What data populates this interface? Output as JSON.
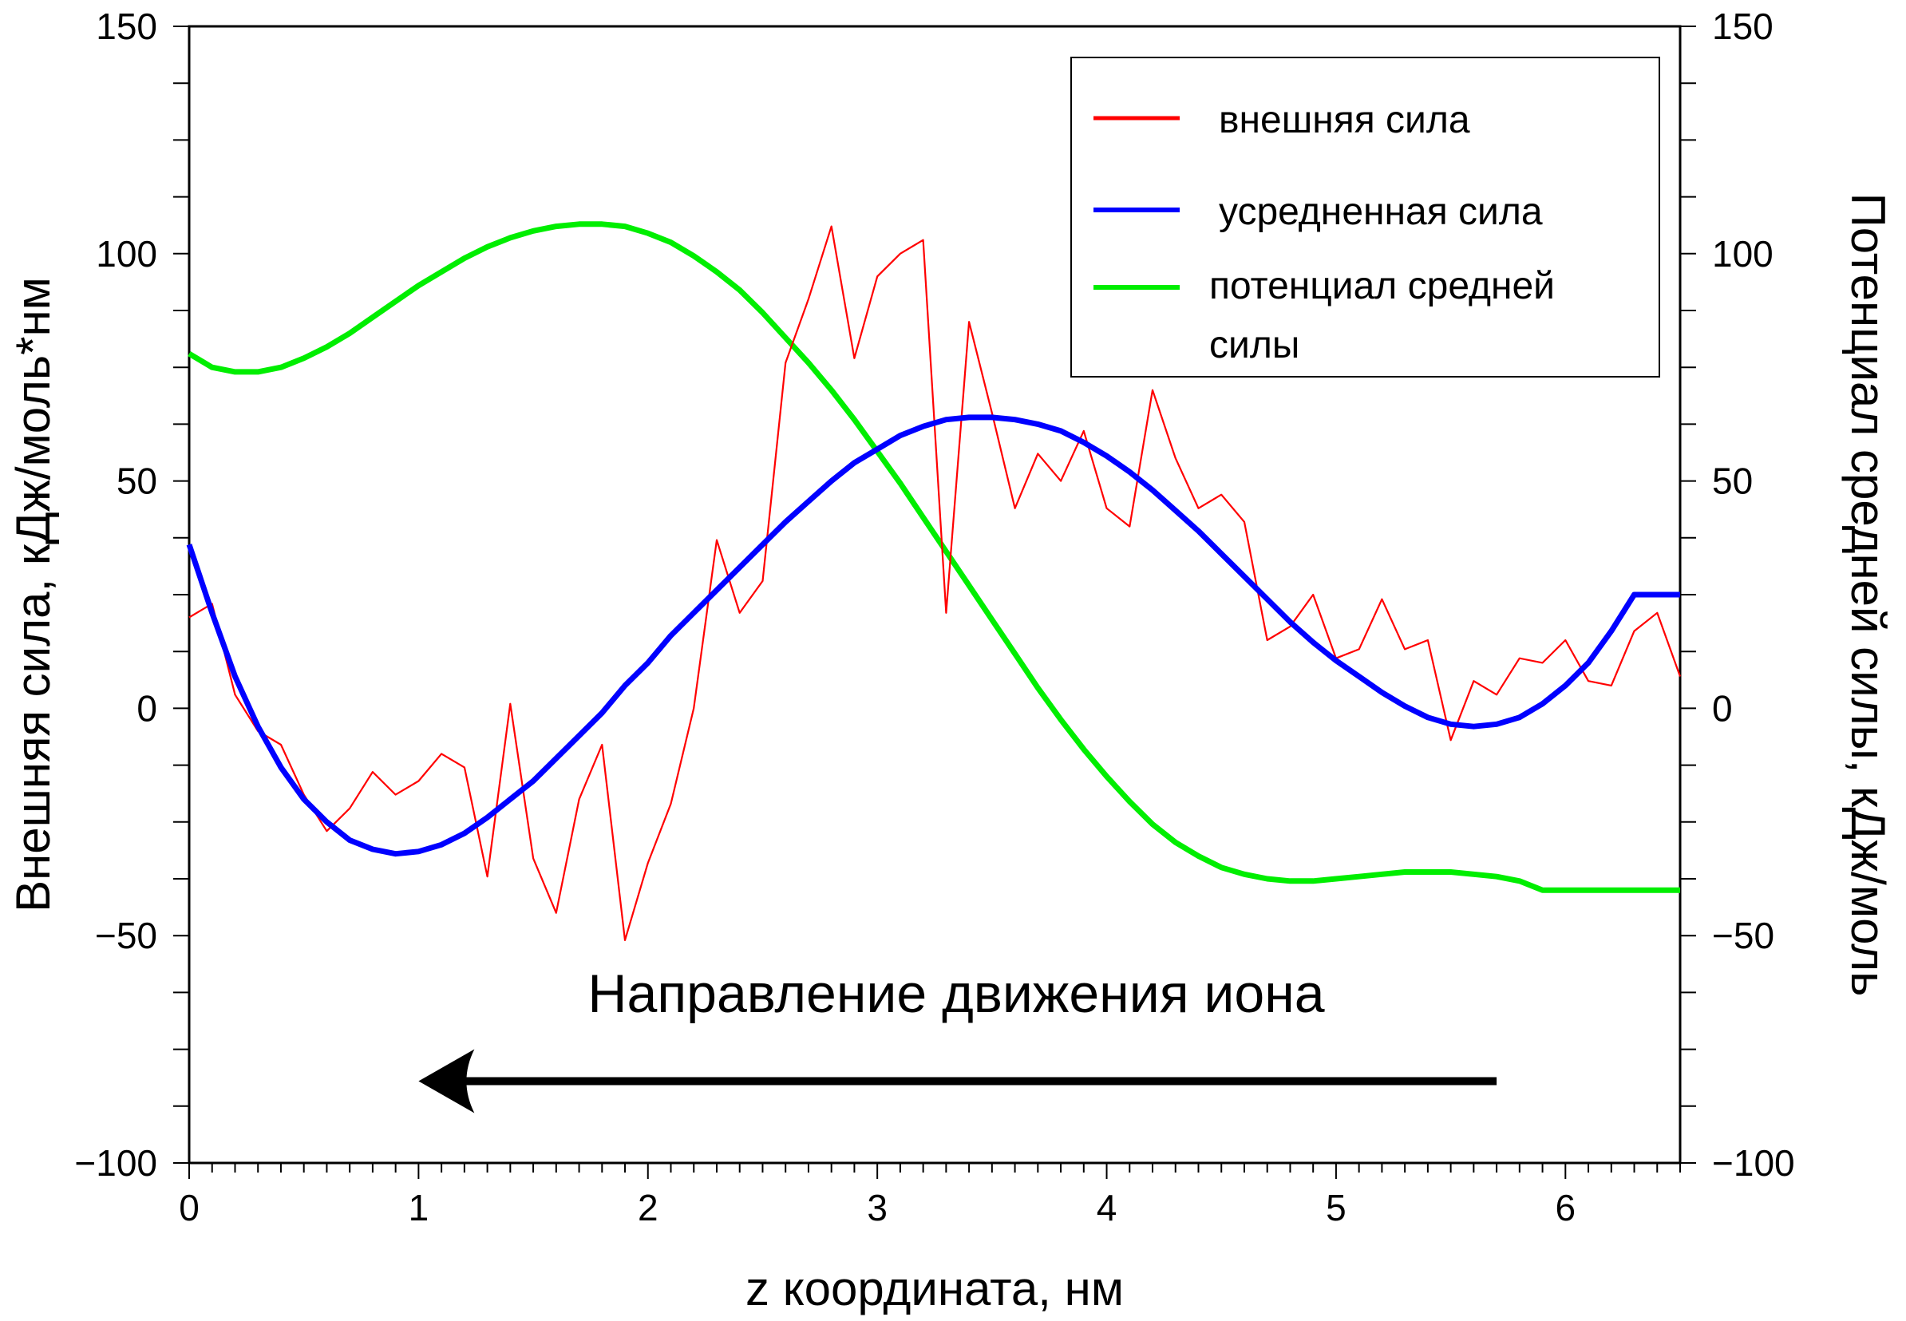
{
  "chart_data": {
    "type": "line",
    "xlabel": "z координата, нм",
    "ylabel": "Внешняя сила, кДж/моль*нм",
    "y2label": "Потенциал средней силы, кДж/моль",
    "xlim": [
      0,
      6.5
    ],
    "ylim": [
      -100,
      150
    ],
    "y2lim": [
      -100,
      150
    ],
    "x_ticks": [
      "0",
      "1",
      "2",
      "3",
      "4",
      "5",
      "6"
    ],
    "y_ticks": [
      "150",
      "100",
      "50",
      "0",
      "−50",
      "−100"
    ],
    "y2_ticks": [
      "150",
      "100",
      "50",
      "0",
      "−50",
      "−100"
    ],
    "annotation": "Направление движения иона",
    "arrow": {
      "from_x": 5.7,
      "to_x": 1.0,
      "y": -82
    },
    "legend_position": "top-right",
    "series": [
      {
        "name": "внешняя сила",
        "color": "#ff0000",
        "axis": "left",
        "x": [
          0,
          0.1,
          0.2,
          0.3,
          0.4,
          0.5,
          0.6,
          0.7,
          0.8,
          0.9,
          1.0,
          1.1,
          1.2,
          1.3,
          1.4,
          1.5,
          1.6,
          1.7,
          1.8,
          1.9,
          2.0,
          2.1,
          2.2,
          2.3,
          2.4,
          2.5,
          2.6,
          2.7,
          2.8,
          2.9,
          3.0,
          3.1,
          3.2,
          3.3,
          3.4,
          3.5,
          3.6,
          3.7,
          3.8,
          3.9,
          4.0,
          4.1,
          4.2,
          4.3,
          4.4,
          4.5,
          4.6,
          4.7,
          4.8,
          4.9,
          5.0,
          5.1,
          5.2,
          5.3,
          5.4,
          5.5,
          5.6,
          5.7,
          5.8,
          5.9,
          6.0,
          6.1,
          6.2,
          6.3,
          6.4,
          6.5
        ],
        "y": [
          20,
          23,
          3,
          -5,
          -8,
          -19,
          -27,
          -22,
          -14,
          -19,
          -16,
          -10,
          -13,
          -37,
          1,
          -33,
          -45,
          -20,
          -8,
          -51,
          -34,
          -21,
          0,
          37,
          21,
          28,
          76,
          90,
          106,
          77,
          95,
          100,
          103,
          21,
          85,
          65,
          44,
          56,
          50,
          61,
          44,
          40,
          70,
          55,
          44,
          47,
          41,
          15,
          18,
          25,
          11,
          13,
          24,
          13,
          15,
          -7,
          6,
          3,
          11,
          10,
          15,
          6,
          5,
          17,
          21,
          7
        ]
      },
      {
        "name": "усредненная сила",
        "color": "#0000ff",
        "axis": "left",
        "x": [
          0,
          0.1,
          0.2,
          0.3,
          0.4,
          0.5,
          0.6,
          0.7,
          0.8,
          0.9,
          1.0,
          1.1,
          1.2,
          1.3,
          1.4,
          1.5,
          1.6,
          1.7,
          1.8,
          1.9,
          2.0,
          2.1,
          2.2,
          2.3,
          2.4,
          2.5,
          2.6,
          2.7,
          2.8,
          2.9,
          3.0,
          3.1,
          3.2,
          3.3,
          3.4,
          3.5,
          3.6,
          3.7,
          3.8,
          3.9,
          4.0,
          4.1,
          4.2,
          4.3,
          4.4,
          4.5,
          4.6,
          4.7,
          4.8,
          4.9,
          5.0,
          5.1,
          5.2,
          5.3,
          5.4,
          5.5,
          5.6,
          5.7,
          5.8,
          5.9,
          6.0,
          6.1,
          6.2,
          6.3,
          6.4,
          6.5
        ],
        "y": [
          36,
          21,
          7,
          -4,
          -13,
          -20,
          -25,
          -29,
          -31,
          -32,
          -31.5,
          -30,
          -27.5,
          -24,
          -20,
          -16,
          -11,
          -6,
          -1,
          5,
          10,
          16,
          21,
          26,
          31,
          36,
          41,
          45.5,
          50,
          54,
          57,
          60,
          62,
          63.5,
          64,
          64,
          63.5,
          62.5,
          61,
          58.5,
          55.5,
          52,
          48,
          43.5,
          39,
          34,
          29,
          24,
          19,
          14.5,
          10.5,
          7,
          3.5,
          0.5,
          -2,
          -3.5,
          -4,
          -3.5,
          -2,
          1,
          5,
          10,
          17,
          25,
          25,
          25
        ]
      },
      {
        "name": "потенциал средней силы",
        "color": "#00ee00",
        "axis": "right",
        "x": [
          0,
          0.1,
          0.2,
          0.3,
          0.4,
          0.5,
          0.6,
          0.7,
          0.8,
          0.9,
          1.0,
          1.1,
          1.2,
          1.3,
          1.4,
          1.5,
          1.6,
          1.7,
          1.8,
          1.9,
          2.0,
          2.1,
          2.2,
          2.3,
          2.4,
          2.5,
          2.6,
          2.7,
          2.8,
          2.9,
          3.0,
          3.1,
          3.2,
          3.3,
          3.4,
          3.5,
          3.6,
          3.7,
          3.8,
          3.9,
          4.0,
          4.1,
          4.2,
          4.3,
          4.4,
          4.5,
          4.6,
          4.7,
          4.8,
          4.9,
          5.0,
          5.1,
          5.2,
          5.3,
          5.4,
          5.5,
          5.6,
          5.7,
          5.8,
          5.9,
          6.0,
          6.1,
          6.2,
          6.3,
          6.4,
          6.5
        ],
        "y": [
          78,
          75,
          74,
          74,
          75,
          77,
          79.5,
          82.5,
          86,
          89.5,
          93,
          96,
          99,
          101.5,
          103.5,
          105,
          106,
          106.5,
          106.5,
          106,
          104.5,
          102.5,
          99.5,
          96,
          92,
          87,
          81.5,
          76,
          70,
          63.5,
          56.5,
          49.5,
          42,
          34.5,
          27,
          19.5,
          12,
          4.5,
          -2.5,
          -9,
          -15,
          -20.5,
          -25.5,
          -29.5,
          -32.5,
          -35,
          -36.5,
          -37.5,
          -38,
          -38,
          -37.5,
          -37,
          -36.5,
          -36,
          -36,
          -36,
          -36.5,
          -37,
          -38,
          -40,
          -40,
          -40,
          -40,
          -40,
          -40,
          -40
        ]
      }
    ]
  }
}
